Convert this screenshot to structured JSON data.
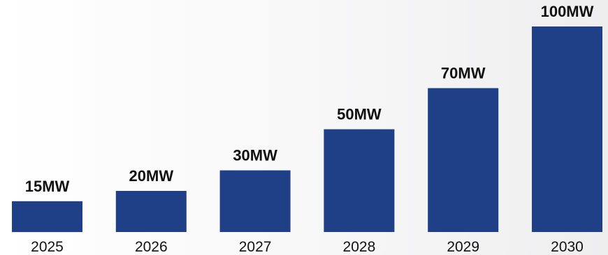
{
  "chart_data": {
    "type": "bar",
    "title": "",
    "xlabel": "",
    "ylabel": "",
    "categories": [
      "2025",
      "2026",
      "2027",
      "2028",
      "2029",
      "2030"
    ],
    "values": [
      15,
      20,
      30,
      50,
      70,
      100
    ],
    "data_labels": [
      "15MW",
      "20MW",
      "30MW",
      "50MW",
      "70MW",
      "100MW"
    ],
    "unit": "MW",
    "ylim": [
      0,
      100
    ],
    "grid": false,
    "legend": "none",
    "bar_color": "#1f3f86"
  }
}
